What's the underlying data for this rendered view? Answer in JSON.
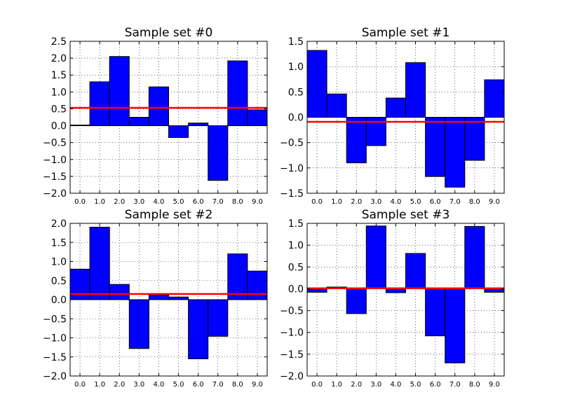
{
  "chart_data": [
    {
      "type": "bar",
      "title": "Sample set #0",
      "categories": [
        "0.0",
        "1.0",
        "2.0",
        "3.0",
        "4.0",
        "5.0",
        "6.0",
        "7.0",
        "8.0",
        "9.0"
      ],
      "values": [
        0.02,
        1.3,
        2.05,
        0.25,
        1.15,
        -0.35,
        0.08,
        -1.62,
        1.92,
        0.47
      ],
      "mean_line": 0.53,
      "ylim": [
        -2.0,
        2.5
      ],
      "yticks": [
        "2.5",
        "2.0",
        "1.5",
        "1.0",
        "0.5",
        "0.0",
        "−0.5",
        "−1.0",
        "−1.5",
        "−2.0"
      ],
      "grid": true
    },
    {
      "type": "bar",
      "title": "Sample set #1",
      "categories": [
        "0.0",
        "1.0",
        "2.0",
        "3.0",
        "4.0",
        "5.0",
        "6.0",
        "7.0",
        "8.0",
        "9.0"
      ],
      "values": [
        1.32,
        0.46,
        -0.9,
        -0.56,
        0.38,
        1.08,
        -1.17,
        -1.38,
        -0.85,
        0.74
      ],
      "mean_line": -0.09,
      "ylim": [
        -1.5,
        1.5
      ],
      "yticks": [
        "1.5",
        "1.0",
        "0.5",
        "0.0",
        "−0.5",
        "−1.0",
        "−1.5"
      ],
      "grid": true
    },
    {
      "type": "bar",
      "title": "Sample set #2",
      "categories": [
        "0.0",
        "1.0",
        "2.0",
        "3.0",
        "4.0",
        "5.0",
        "6.0",
        "7.0",
        "8.0",
        "9.0"
      ],
      "values": [
        0.8,
        1.9,
        0.4,
        -1.28,
        0.12,
        0.07,
        -1.55,
        -0.96,
        1.2,
        0.75
      ],
      "mean_line": 0.15,
      "ylim": [
        -2.0,
        2.0
      ],
      "yticks": [
        "2.0",
        "1.5",
        "1.0",
        "0.5",
        "0.0",
        "−0.5",
        "−1.0",
        "−1.5",
        "−2.0"
      ],
      "grid": true
    },
    {
      "type": "bar",
      "title": "Sample set #3",
      "categories": [
        "0.0",
        "1.0",
        "2.0",
        "3.0",
        "4.0",
        "5.0",
        "6.0",
        "7.0",
        "8.0",
        "9.0"
      ],
      "values": [
        -0.08,
        0.04,
        -0.57,
        1.44,
        -0.09,
        0.81,
        -1.08,
        -1.7,
        1.43,
        -0.08
      ],
      "mean_line": 0.01,
      "ylim": [
        -2.0,
        1.5
      ],
      "yticks": [
        "1.5",
        "1.0",
        "0.5",
        "0.0",
        "−0.5",
        "−1.0",
        "−1.5",
        "−2.0"
      ],
      "grid": true
    }
  ],
  "colors": {
    "bar_fill": "#0000ff",
    "bar_edge": "#000000",
    "mean_line": "#ff0000",
    "grid": "#000000",
    "axes": "#000000"
  }
}
